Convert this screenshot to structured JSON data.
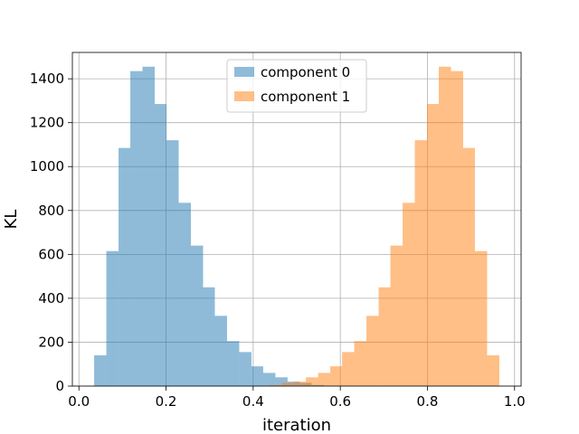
{
  "chart_data": {
    "type": "histogram",
    "xlabel": "iteration",
    "ylabel": "KL",
    "xlim": [
      -0.015,
      1.015
    ],
    "ylim": [
      0,
      1520
    ],
    "xticks": [
      0.0,
      0.2,
      0.4,
      0.6,
      0.8,
      1.0
    ],
    "xtick_labels": [
      "0.0",
      "0.2",
      "0.4",
      "0.6",
      "0.8",
      "1.0"
    ],
    "yticks": [
      0,
      200,
      400,
      600,
      800,
      1000,
      1200,
      1400
    ],
    "ytick_labels": [
      "0",
      "200",
      "400",
      "600",
      "800",
      "1000",
      "1200",
      "1400"
    ],
    "grid": true,
    "legend_position": "top-center",
    "series": [
      {
        "name": "component 0",
        "color": "#1f77b4",
        "alpha": 0.5,
        "bins": [
          {
            "x0": 0.035,
            "x1": 0.063,
            "count": 140
          },
          {
            "x0": 0.063,
            "x1": 0.091,
            "count": 615
          },
          {
            "x0": 0.091,
            "x1": 0.118,
            "count": 1085
          },
          {
            "x0": 0.118,
            "x1": 0.146,
            "count": 1435
          },
          {
            "x0": 0.146,
            "x1": 0.174,
            "count": 1455
          },
          {
            "x0": 0.174,
            "x1": 0.201,
            "count": 1285
          },
          {
            "x0": 0.201,
            "x1": 0.229,
            "count": 1120
          },
          {
            "x0": 0.229,
            "x1": 0.257,
            "count": 835
          },
          {
            "x0": 0.257,
            "x1": 0.285,
            "count": 640
          },
          {
            "x0": 0.285,
            "x1": 0.312,
            "count": 450
          },
          {
            "x0": 0.312,
            "x1": 0.34,
            "count": 320
          },
          {
            "x0": 0.34,
            "x1": 0.368,
            "count": 205
          },
          {
            "x0": 0.368,
            "x1": 0.396,
            "count": 155
          },
          {
            "x0": 0.396,
            "x1": 0.423,
            "count": 90
          },
          {
            "x0": 0.423,
            "x1": 0.451,
            "count": 60
          },
          {
            "x0": 0.451,
            "x1": 0.479,
            "count": 40
          },
          {
            "x0": 0.479,
            "x1": 0.507,
            "count": 20
          },
          {
            "x0": 0.507,
            "x1": 0.534,
            "count": 15
          },
          {
            "x0": 0.534,
            "x1": 0.562,
            "count": 5
          }
        ]
      },
      {
        "name": "component 1",
        "color": "#ff7f0e",
        "alpha": 0.5,
        "bins": [
          {
            "x0": 0.438,
            "x1": 0.466,
            "count": 5
          },
          {
            "x0": 0.466,
            "x1": 0.493,
            "count": 15
          },
          {
            "x0": 0.493,
            "x1": 0.521,
            "count": 20
          },
          {
            "x0": 0.521,
            "x1": 0.549,
            "count": 40
          },
          {
            "x0": 0.549,
            "x1": 0.577,
            "count": 60
          },
          {
            "x0": 0.577,
            "x1": 0.604,
            "count": 90
          },
          {
            "x0": 0.604,
            "x1": 0.632,
            "count": 155
          },
          {
            "x0": 0.632,
            "x1": 0.66,
            "count": 205
          },
          {
            "x0": 0.66,
            "x1": 0.688,
            "count": 320
          },
          {
            "x0": 0.688,
            "x1": 0.715,
            "count": 450
          },
          {
            "x0": 0.715,
            "x1": 0.743,
            "count": 640
          },
          {
            "x0": 0.743,
            "x1": 0.771,
            "count": 835
          },
          {
            "x0": 0.771,
            "x1": 0.799,
            "count": 1120
          },
          {
            "x0": 0.799,
            "x1": 0.826,
            "count": 1285
          },
          {
            "x0": 0.826,
            "x1": 0.854,
            "count": 1455
          },
          {
            "x0": 0.854,
            "x1": 0.882,
            "count": 1435
          },
          {
            "x0": 0.882,
            "x1": 0.909,
            "count": 1085
          },
          {
            "x0": 0.909,
            "x1": 0.937,
            "count": 615
          },
          {
            "x0": 0.937,
            "x1": 0.965,
            "count": 140
          }
        ]
      }
    ]
  }
}
